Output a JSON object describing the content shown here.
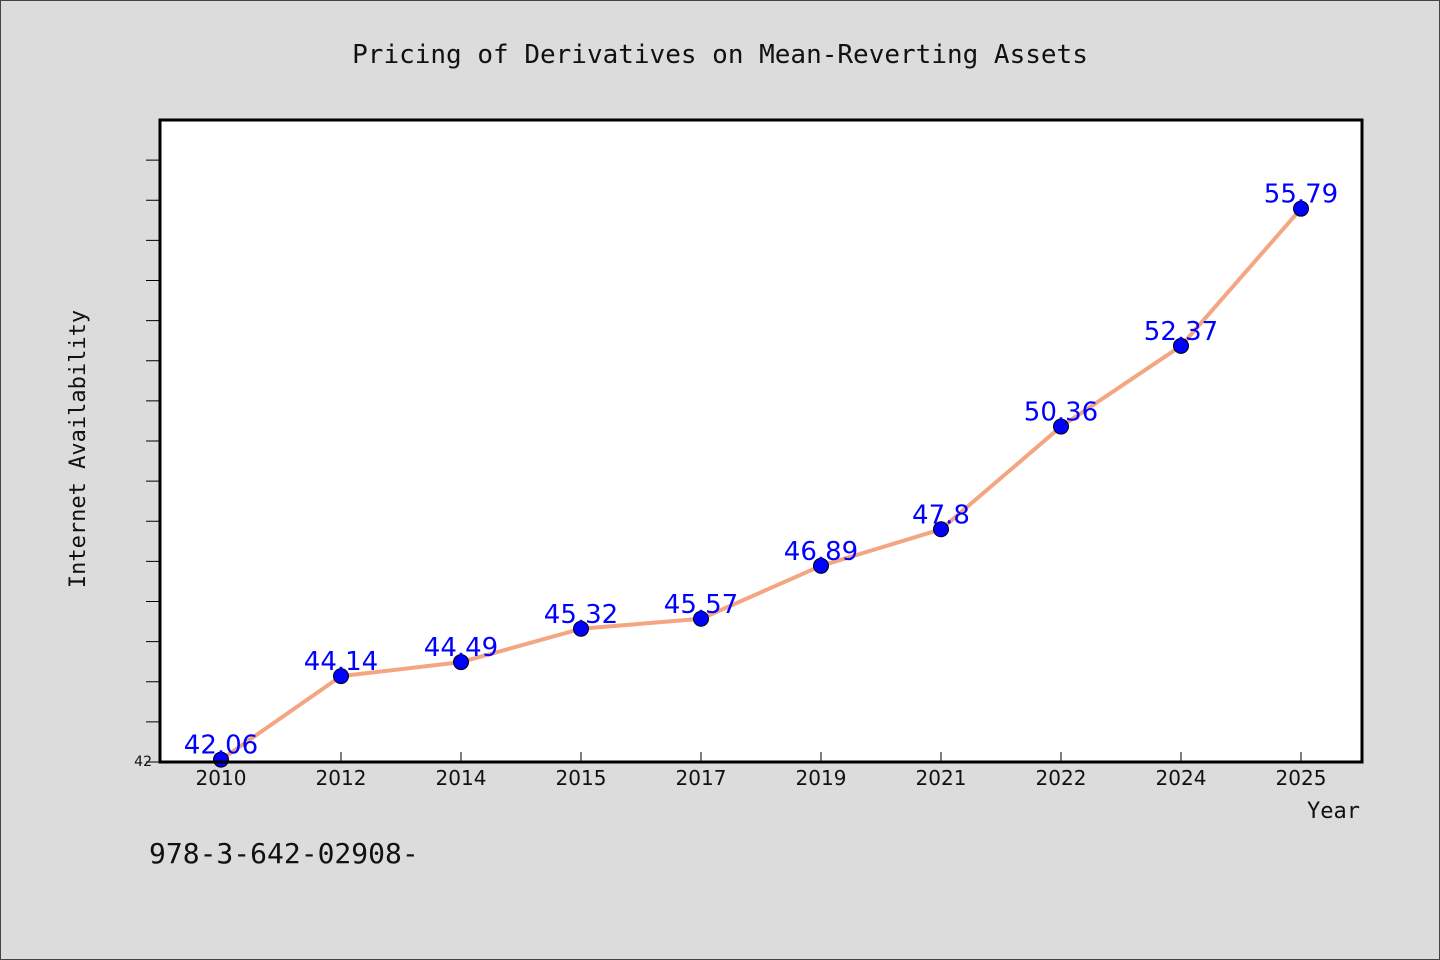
{
  "chart_data": {
    "type": "line",
    "title": "Pricing of Derivatives on Mean-Reverting Assets",
    "xlabel": "Year",
    "ylabel": "Internet Availability",
    "categories": [
      "2010",
      "2012",
      "2014",
      "2015",
      "2017",
      "2019",
      "2021",
      "2022",
      "2024",
      "2025"
    ],
    "series": [
      {
        "values": [
          42.06,
          44.14,
          44.49,
          45.32,
          45.57,
          46.89,
          47.8,
          50.36,
          52.37,
          55.79
        ],
        "data_labels": [
          "42.06",
          "44.14",
          "44.49",
          "45.32",
          "45.57",
          "46.89",
          "47.8",
          "50.36",
          "52.37",
          "55.79"
        ]
      }
    ],
    "ylim": [
      42,
      58
    ],
    "y_tick_labels": [
      "42"
    ],
    "grid": false,
    "legend": "none",
    "colors": {
      "line": "#f4a582",
      "marker": "#0000ff",
      "data_label": "#0000ff",
      "background": "#dcdcdc",
      "plot_background": "#ffffff"
    }
  },
  "footer": {
    "isbn": "978-3-642-02908-"
  }
}
